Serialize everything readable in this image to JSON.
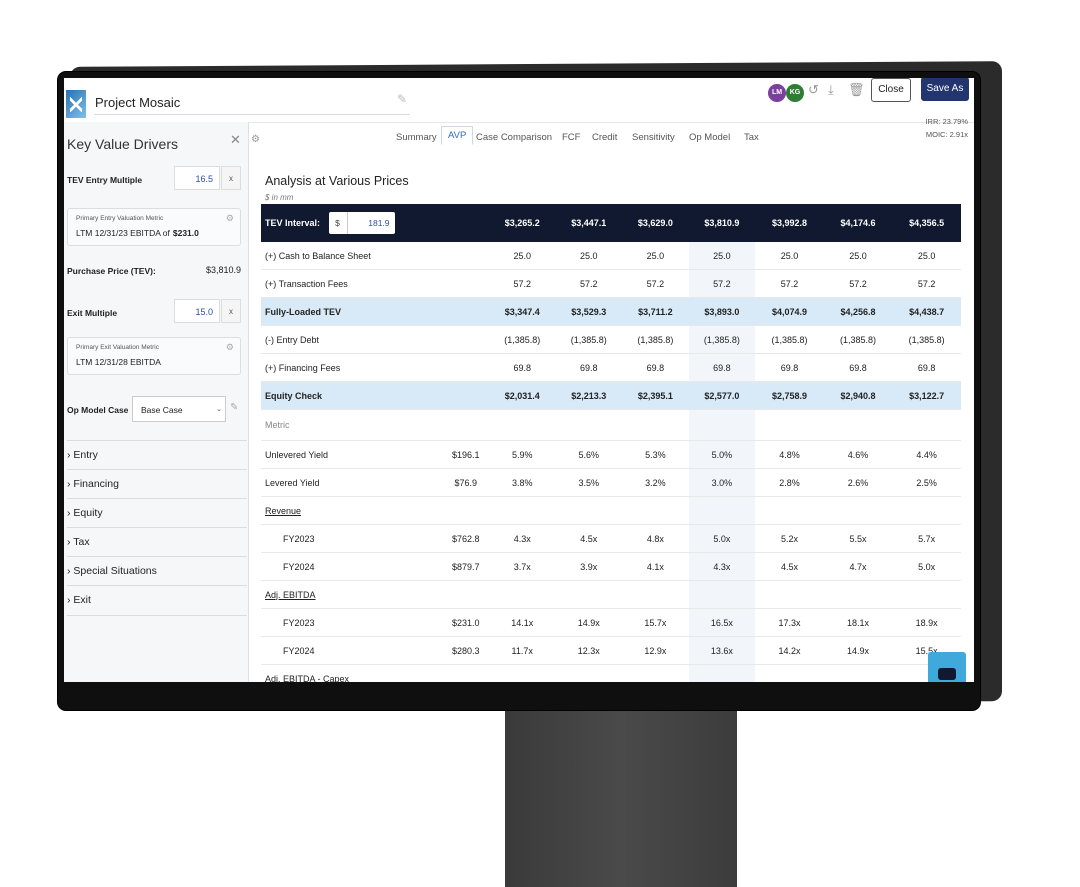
{
  "header": {
    "project_title": "Project Mosaic",
    "avatars": [
      "LM",
      "KG"
    ],
    "close_label": "Close",
    "save_as_label": "Save As",
    "irr_label": "IRR:",
    "irr_value": "23.79%",
    "moic_label": "MOIC:",
    "moic_value": "2.91x"
  },
  "sidebar": {
    "title": "Key Value Drivers",
    "tev_entry_multiple_label": "TEV Entry Multiple",
    "tev_entry_multiple_value": "16.5",
    "x_label": "x",
    "entry_metric_caption": "Primary Entry Valuation Metric",
    "entry_metric_text": "LTM 12/31/23 EBITDA of",
    "entry_metric_value": "$231.0",
    "purchase_price_label": "Purchase Price (TEV):",
    "purchase_price_value": "$3,810.9",
    "exit_multiple_label": "Exit Multiple",
    "exit_multiple_value": "15.0",
    "exit_metric_caption": "Primary Exit Valuation Metric",
    "exit_metric_text": "LTM 12/31/28 EBITDA",
    "op_model_case_label": "Op Model Case",
    "op_model_case_value": "Base Case",
    "sections": [
      "Entry",
      "Financing",
      "Equity",
      "Tax",
      "Special Situations",
      "Exit"
    ]
  },
  "tabs": [
    "Summary",
    "AVP",
    "Case Comparison",
    "FCF",
    "Credit",
    "Sensitivity",
    "Op Model",
    "Tax"
  ],
  "active_tab": "AVP",
  "main": {
    "title": "Analysis at Various Prices",
    "subtitle": "$ in mm",
    "tev_interval_label": "TEV Interval:",
    "tev_interval_currency": "$",
    "tev_interval_value": "181.9",
    "columns": [
      "$3,265.2",
      "$3,447.1",
      "$3,629.0",
      "$3,810.9",
      "$3,992.8",
      "$4,174.6",
      "$4,356.5"
    ],
    "rows": [
      {
        "label": "(+) Cash to Balance Sheet",
        "base": "",
        "values": [
          "25.0",
          "25.0",
          "25.0",
          "25.0",
          "25.0",
          "25.0",
          "25.0"
        ],
        "style": ""
      },
      {
        "label": "(+) Transaction Fees",
        "base": "",
        "values": [
          "57.2",
          "57.2",
          "57.2",
          "57.2",
          "57.2",
          "57.2",
          "57.2"
        ],
        "style": ""
      },
      {
        "label": "Fully-Loaded TEV",
        "base": "",
        "values": [
          "$3,347.4",
          "$3,529.3",
          "$3,711.2",
          "$3,893.0",
          "$4,074.9",
          "$4,256.8",
          "$4,438.7"
        ],
        "style": "band"
      },
      {
        "label": "(-) Entry Debt",
        "base": "",
        "values": [
          "(1,385.8)",
          "(1,385.8)",
          "(1,385.8)",
          "(1,385.8)",
          "(1,385.8)",
          "(1,385.8)",
          "(1,385.8)"
        ],
        "style": ""
      },
      {
        "label": "(+) Financing Fees",
        "base": "",
        "values": [
          "69.8",
          "69.8",
          "69.8",
          "69.8",
          "69.8",
          "69.8",
          "69.8"
        ],
        "style": ""
      },
      {
        "label": "Equity Check",
        "base": "",
        "values": [
          "$2,031.4",
          "$2,213.3",
          "$2,395.1",
          "$2,577.0",
          "$2,758.9",
          "$2,940.8",
          "$3,122.7"
        ],
        "style": "band"
      },
      {
        "label": "Metric",
        "base": "",
        "values": [
          "",
          "",
          "",
          "",
          "",
          "",
          ""
        ],
        "style": "metric"
      },
      {
        "label": "Unlevered Yield",
        "base": "$196.1",
        "values": [
          "5.9%",
          "5.6%",
          "5.3%",
          "5.0%",
          "4.8%",
          "4.6%",
          "4.4%"
        ],
        "style": ""
      },
      {
        "label": "Levered Yield",
        "base": "$76.9",
        "values": [
          "3.8%",
          "3.5%",
          "3.2%",
          "3.0%",
          "2.8%",
          "2.6%",
          "2.5%"
        ],
        "style": ""
      },
      {
        "label": "Revenue",
        "base": "",
        "values": [
          "",
          "",
          "",
          "",
          "",
          "",
          ""
        ],
        "style": "link"
      },
      {
        "label": "FY2023",
        "base": "$762.8",
        "values": [
          "4.3x",
          "4.5x",
          "4.8x",
          "5.0x",
          "5.2x",
          "5.5x",
          "5.7x"
        ],
        "style": "indent"
      },
      {
        "label": "FY2024",
        "base": "$879.7",
        "values": [
          "3.7x",
          "3.9x",
          "4.1x",
          "4.3x",
          "4.5x",
          "4.7x",
          "5.0x"
        ],
        "style": "indent"
      },
      {
        "label": "Adj. EBITDA",
        "base": "",
        "values": [
          "",
          "",
          "",
          "",
          "",
          "",
          ""
        ],
        "style": "link"
      },
      {
        "label": "FY2023",
        "base": "$231.0",
        "values": [
          "14.1x",
          "14.9x",
          "15.7x",
          "16.5x",
          "17.3x",
          "18.1x",
          "18.9x"
        ],
        "style": "indent"
      },
      {
        "label": "FY2024",
        "base": "$280.3",
        "values": [
          "11.7x",
          "12.3x",
          "12.9x",
          "13.6x",
          "14.2x",
          "14.9x",
          "15.5x"
        ],
        "style": "indent"
      },
      {
        "label": "Adj. EBITDA - Capex",
        "base": "",
        "values": [
          "",
          "",
          "",
          "",
          "",
          "",
          ""
        ],
        "style": "link"
      }
    ]
  },
  "colors": {
    "header_bg": "#10192f",
    "band_bg": "#d8eaf8",
    "accent": "#2d6bd0",
    "save_button": "#23356e"
  }
}
